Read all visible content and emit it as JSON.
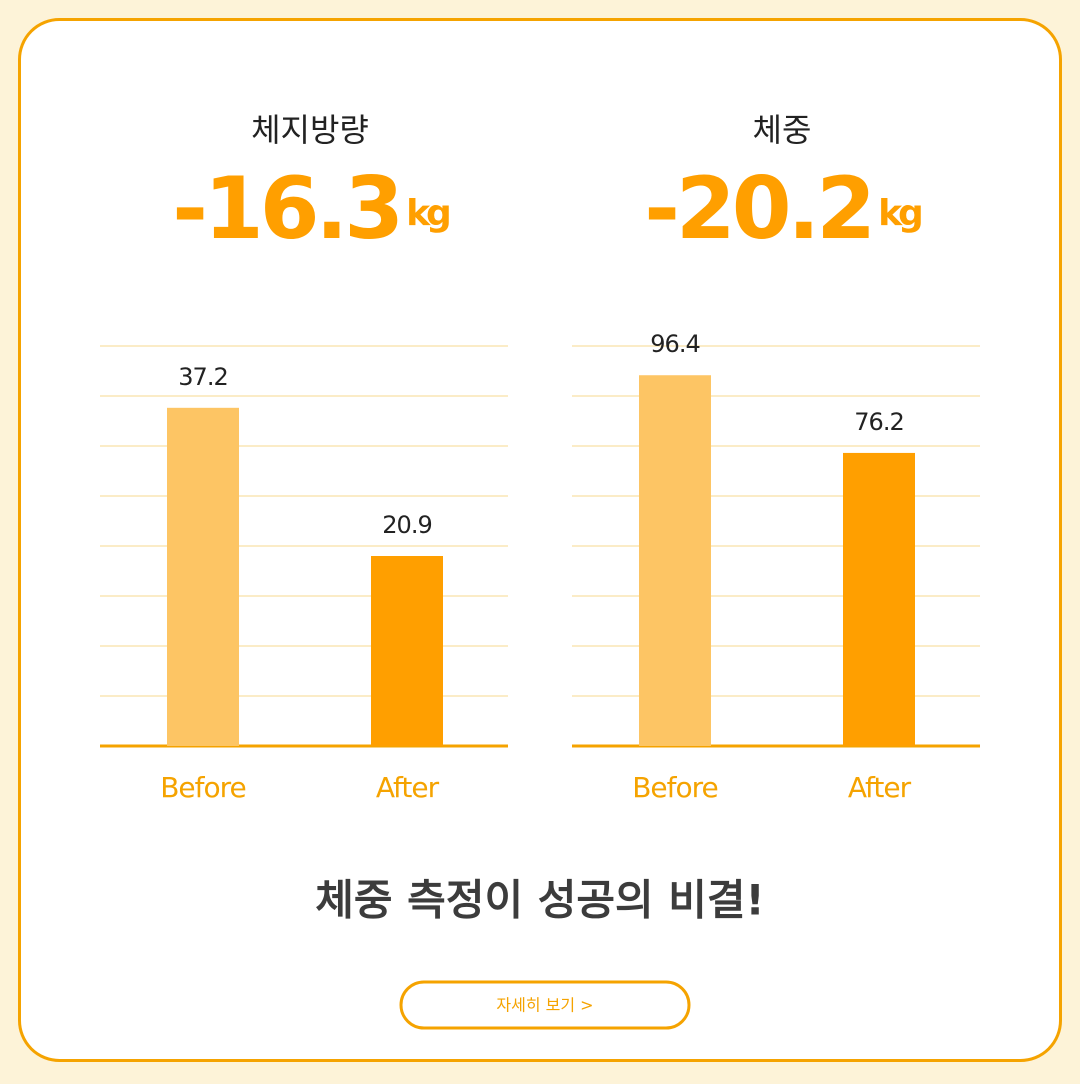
{
  "chart_data": [
    {
      "type": "bar",
      "title": "체지방량",
      "headline": "-16.3",
      "unit": "kg",
      "categories": [
        "Before",
        "After"
      ],
      "values": [
        37.2,
        20.9
      ],
      "colors": [
        "#fdc564",
        "#ff9f00"
      ],
      "ylim": [
        0,
        44
      ],
      "yticks": [
        0,
        5.5,
        11,
        16.5,
        22,
        27.5,
        33,
        38.5,
        44
      ],
      "grid": true
    },
    {
      "type": "bar",
      "title": "체중",
      "headline": "-20.2",
      "unit": "kg",
      "categories": [
        "Before",
        "After"
      ],
      "values": [
        96.4,
        76.2
      ],
      "colors": [
        "#fdc564",
        "#ff9f00"
      ],
      "ylim": [
        0,
        104
      ],
      "yticks": [
        0,
        13,
        26,
        39,
        52,
        65,
        78,
        91,
        104
      ],
      "grid": true
    }
  ],
  "footer": {
    "slogan": "체중 측정이 성공의 비결!",
    "button": "자세히 보기 >"
  }
}
